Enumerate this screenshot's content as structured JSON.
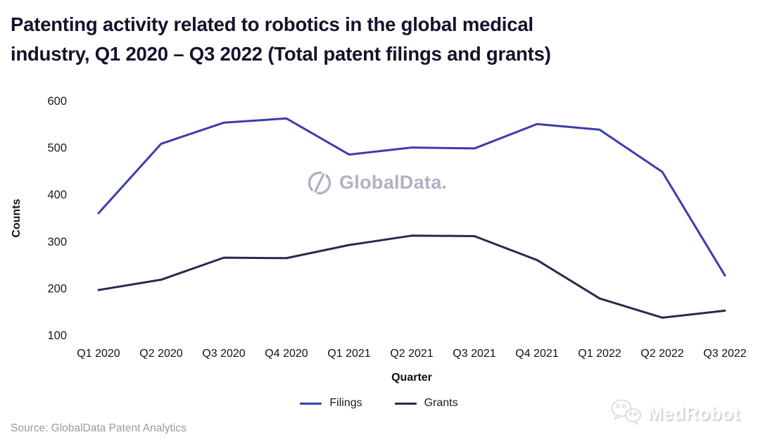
{
  "title": "Patenting activity related to robotics in the global medical\nindustry, Q1 2020 – Q3 2022 (Total patent filings and grants)",
  "source": "Source: GlobalData Patent Analytics",
  "watermark": {
    "icon": "globaldata-logo",
    "text": "GlobalData.",
    "color": "#b7aec5"
  },
  "brand": {
    "icon": "wechat-icon",
    "text": "MedRobot"
  },
  "colors": {
    "title_text": "#13132b",
    "filings_line": "#3d3dab",
    "grants_line": "#29294f"
  },
  "chart_data": {
    "type": "line",
    "title": "Patenting activity related to robotics in the global medical industry, Q1 2020 – Q3 2022 (Total patent filings and grants)",
    "categories": [
      "Q1 2020",
      "Q2 2020",
      "Q3 2020",
      "Q4 2020",
      "Q1 2021",
      "Q2 2021",
      "Q3 2021",
      "Q4 2021",
      "Q1 2022",
      "Q2 2022",
      "Q3 2022"
    ],
    "series": [
      {
        "name": "Filings",
        "color": "#3d3dab",
        "values": [
          360,
          508,
          553,
          562,
          485,
          500,
          498,
          550,
          538,
          448,
          227
        ]
      },
      {
        "name": "Grants",
        "color": "#29294f",
        "values": [
          196,
          218,
          265,
          264,
          292,
          312,
          311,
          260,
          178,
          137,
          152
        ]
      }
    ],
    "xlabel": "Quarter",
    "ylabel": "Counts",
    "ylim": [
      100,
      600
    ],
    "yticks": [
      100,
      200,
      300,
      400,
      500,
      600
    ],
    "grid": false,
    "legend_position": "bottom"
  }
}
